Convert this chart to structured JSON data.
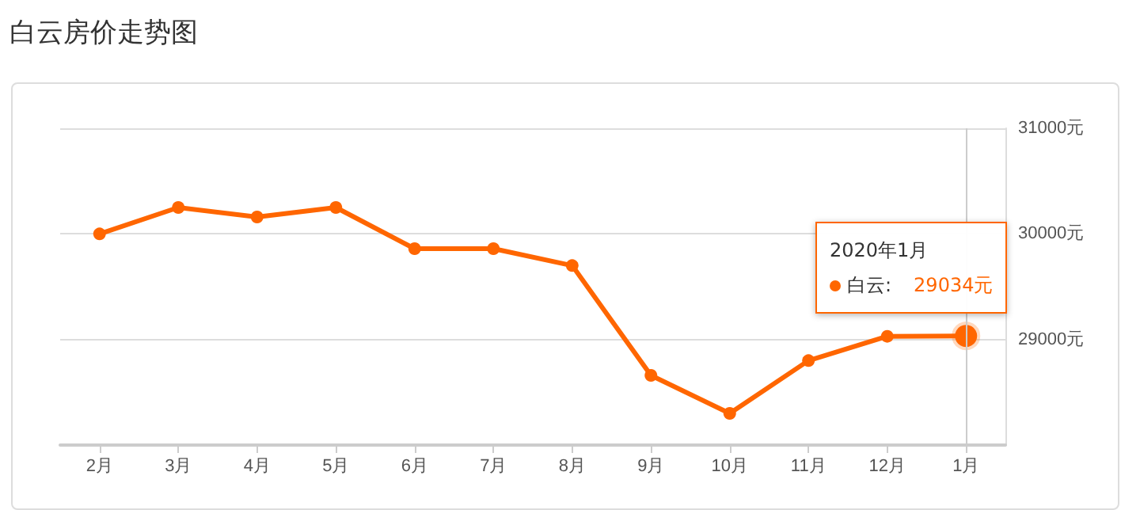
{
  "chart_data": {
    "type": "line",
    "title": "白云房价走势图",
    "categories": [
      "2月",
      "3月",
      "4月",
      "5月",
      "6月",
      "7月",
      "8月",
      "9月",
      "10月",
      "11月",
      "12月",
      "1月"
    ],
    "series": [
      {
        "name": "白云:",
        "color": "#ff6600",
        "values": [
          30000,
          30250,
          30160,
          30250,
          29860,
          29860,
          29700,
          28660,
          28300,
          28800,
          29030,
          29034
        ],
        "value_labels": [
          null,
          null,
          null,
          null,
          null,
          null,
          null,
          null,
          null,
          null,
          null,
          "29034元"
        ]
      }
    ],
    "ylim": [
      28000,
      31000
    ],
    "yticks": [
      {
        "value": 28000,
        "label": null
      },
      {
        "value": 29000,
        "label": "29000元"
      },
      {
        "value": 30000,
        "label": "30000元"
      },
      {
        "value": 31000,
        "label": "31000元"
      }
    ],
    "grid": "y",
    "marker": "circle",
    "line_style": "solid",
    "legend": "top right",
    "ref_lines": [
      {
        "axis": "x",
        "value": "1月",
        "color": "#cccccc"
      }
    ],
    "annotations": [
      "2020年1月"
    ]
  }
}
